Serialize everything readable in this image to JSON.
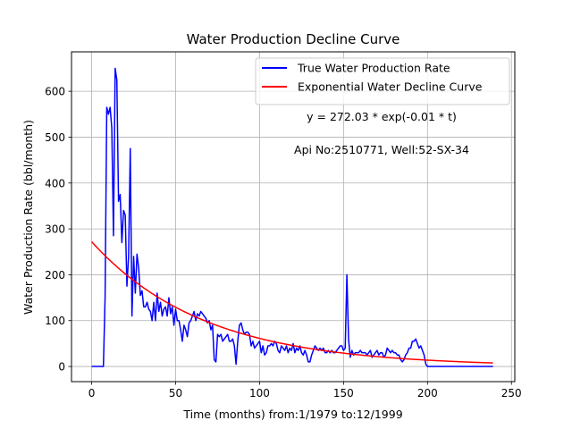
{
  "chart_data": {
    "type": "line",
    "title": "Water Production Decline Curve",
    "xlabel": "Time (months) from:1/1979 to:12/1999",
    "ylabel": "Water Production Rate (bbl/month)",
    "xlim": [
      -12,
      252
    ],
    "ylim": [
      -33,
      686
    ],
    "xticks": [
      0,
      50,
      100,
      150,
      200,
      250
    ],
    "yticks": [
      0,
      100,
      200,
      300,
      400,
      500,
      600
    ],
    "grid": true,
    "legend_position": "top-right",
    "annotations": [
      "y = 272.03 * exp(-0.01 * t)",
      "Api No:2510771, Well:52-SX-34"
    ],
    "series": [
      {
        "name": "True Water Production Rate",
        "color": "#0000ff",
        "x": [
          0,
          1,
          2,
          3,
          4,
          5,
          6,
          7,
          8,
          9,
          10,
          11,
          12,
          13,
          14,
          15,
          16,
          17,
          18,
          19,
          20,
          21,
          22,
          23,
          24,
          25,
          26,
          27,
          28,
          29,
          30,
          31,
          32,
          33,
          34,
          35,
          36,
          37,
          38,
          39,
          40,
          41,
          42,
          43,
          44,
          45,
          46,
          47,
          48,
          49,
          50,
          51,
          52,
          53,
          54,
          55,
          56,
          57,
          58,
          59,
          60,
          61,
          62,
          63,
          64,
          65,
          66,
          67,
          68,
          69,
          70,
          71,
          72,
          73,
          74,
          75,
          76,
          77,
          78,
          79,
          80,
          81,
          82,
          83,
          84,
          85,
          86,
          87,
          88,
          89,
          90,
          91,
          92,
          93,
          94,
          95,
          96,
          97,
          98,
          99,
          100,
          101,
          102,
          103,
          104,
          105,
          106,
          107,
          108,
          109,
          110,
          111,
          112,
          113,
          114,
          115,
          116,
          117,
          118,
          119,
          120,
          121,
          122,
          123,
          124,
          125,
          126,
          127,
          128,
          129,
          130,
          131,
          132,
          133,
          134,
          135,
          136,
          137,
          138,
          139,
          140,
          141,
          142,
          143,
          144,
          145,
          146,
          147,
          148,
          149,
          150,
          151,
          152,
          153,
          154,
          155,
          156,
          157,
          158,
          159,
          160,
          161,
          162,
          163,
          164,
          165,
          166,
          167,
          168,
          169,
          170,
          171,
          172,
          173,
          174,
          175,
          176,
          177,
          178,
          179,
          180,
          181,
          182,
          183,
          184,
          185,
          186,
          187,
          188,
          189,
          190,
          191,
          192,
          193,
          194,
          195,
          196,
          197,
          198,
          199,
          200,
          205,
          210,
          215,
          220,
          225,
          230,
          235,
          239
        ],
        "y": [
          0,
          0,
          0,
          0,
          0,
          0,
          0,
          0,
          150,
          565,
          550,
          565,
          520,
          285,
          650,
          625,
          360,
          375,
          270,
          340,
          330,
          175,
          240,
          475,
          110,
          240,
          160,
          245,
          215,
          155,
          165,
          130,
          130,
          140,
          125,
          120,
          100,
          140,
          100,
          160,
          120,
          140,
          110,
          125,
          130,
          110,
          150,
          115,
          130,
          90,
          125,
          100,
          100,
          80,
          55,
          90,
          80,
          65,
          95,
          100,
          110,
          120,
          100,
          115,
          110,
          120,
          115,
          110,
          105,
          95,
          100,
          80,
          90,
          15,
          10,
          70,
          65,
          70,
          55,
          60,
          65,
          70,
          55,
          55,
          60,
          45,
          5,
          55,
          90,
          95,
          80,
          70,
          75,
          75,
          70,
          45,
          55,
          40,
          45,
          50,
          55,
          30,
          45,
          25,
          30,
          45,
          45,
          50,
          45,
          55,
          50,
          35,
          30,
          45,
          40,
          35,
          45,
          30,
          40,
          35,
          50,
          30,
          40,
          35,
          45,
          30,
          25,
          35,
          25,
          10,
          10,
          25,
          35,
          45,
          40,
          35,
          40,
          35,
          40,
          30,
          30,
          35,
          30,
          35,
          30,
          30,
          35,
          40,
          45,
          45,
          35,
          40,
          200,
          60,
          20,
          35,
          25,
          30,
          30,
          30,
          35,
          30,
          30,
          30,
          25,
          30,
          35,
          20,
          25,
          30,
          35,
          25,
          30,
          30,
          20,
          25,
          40,
          35,
          30,
          35,
          30,
          30,
          25,
          25,
          15,
          10,
          15,
          25,
          30,
          40,
          40,
          55,
          55,
          60,
          50,
          40,
          45,
          35,
          25,
          5,
          0,
          0,
          0,
          0,
          0,
          0,
          0,
          0,
          0
        ]
      },
      {
        "name": "Exponential Water Decline Curve",
        "color": "#ff0000",
        "model": {
          "a": 272.03,
          "b": 0.0149
        },
        "x_range": [
          0,
          239
        ]
      }
    ]
  }
}
